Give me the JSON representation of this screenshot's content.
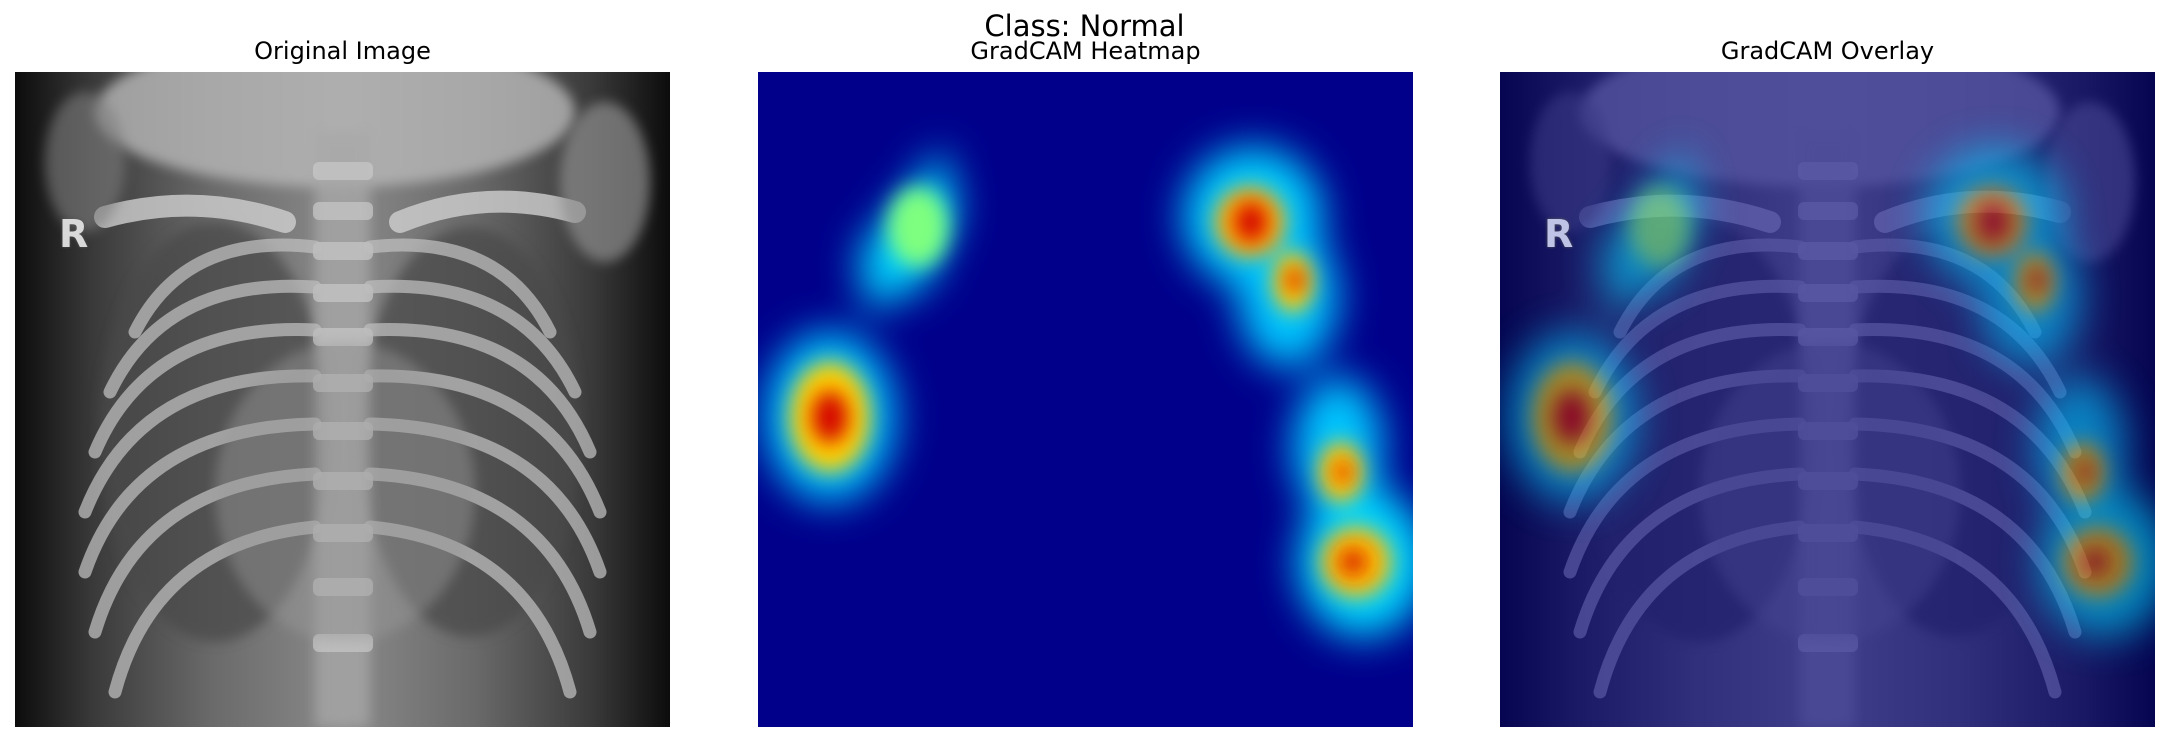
{
  "figure": {
    "title": "Class: Normal"
  },
  "panels": [
    {
      "title": "Original Image",
      "kind": "xray"
    },
    {
      "title": "GradCAM Heatmap",
      "kind": "heatmap"
    },
    {
      "title": "GradCAM Overlay",
      "kind": "overlay"
    }
  ],
  "xray": {
    "marker_text": "R"
  },
  "colors": {
    "heatmap_background": "#00008b",
    "hot": "#d40000"
  }
}
